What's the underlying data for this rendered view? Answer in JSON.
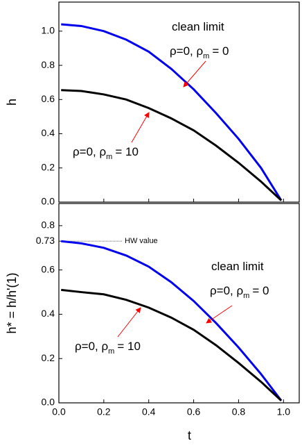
{
  "chart_data": [
    {
      "type": "line",
      "ylabel": "h",
      "x": [
        0.01,
        0.1,
        0.2,
        0.3,
        0.4,
        0.5,
        0.6,
        0.7,
        0.8,
        0.9,
        0.99
      ],
      "series": [
        {
          "color": "#0000ee",
          "values": [
            1.04,
            1.03,
            1.0,
            0.95,
            0.88,
            0.78,
            0.66,
            0.52,
            0.37,
            0.2,
            0.01
          ]
        },
        {
          "color": "#000000",
          "values": [
            0.655,
            0.65,
            0.63,
            0.6,
            0.55,
            0.49,
            0.42,
            0.33,
            0.23,
            0.12,
            0.01
          ]
        }
      ],
      "annotations": [
        {
          "text": "clean limit"
        },
        {
          "text": "ρ=0, ρ",
          "sub": "m",
          "rest": "= 0"
        },
        {
          "text": "ρ=0, ρ",
          "sub": "m",
          "rest": "= 10"
        }
      ],
      "arrow_color": "#ff0000",
      "xlim": [
        0,
        1.07
      ],
      "ylim": [
        0,
        1.17
      ],
      "yticks": [
        {
          "value": 0,
          "label": "0.0"
        },
        {
          "value": 0.2,
          "label": "0.2"
        },
        {
          "value": 0.4,
          "label": "0.4"
        },
        {
          "value": 0.6,
          "label": "0.6"
        },
        {
          "value": 0.8,
          "label": "0.8"
        },
        {
          "value": 1.0,
          "label": "1.0"
        }
      ]
    },
    {
      "type": "line",
      "ylabel": "h* = h/h'(1)",
      "xlabel": "t",
      "x": [
        0.01,
        0.1,
        0.2,
        0.3,
        0.4,
        0.5,
        0.6,
        0.7,
        0.8,
        0.9,
        0.99
      ],
      "series": [
        {
          "color": "#0000ee",
          "values": [
            0.73,
            0.72,
            0.7,
            0.665,
            0.615,
            0.545,
            0.46,
            0.36,
            0.25,
            0.13,
            0.01
          ]
        },
        {
          "color": "#000000",
          "values": [
            0.51,
            0.5,
            0.49,
            0.465,
            0.43,
            0.385,
            0.33,
            0.26,
            0.18,
            0.095,
            0.01
          ]
        }
      ],
      "annotations": [
        {
          "text": "HW value"
        },
        {
          "text": "clean limit"
        },
        {
          "text": "ρ=0, ρ",
          "sub": "m",
          "rest": "= 0"
        },
        {
          "text": "ρ=0, ρ",
          "sub": "m",
          "rest": "= 10"
        }
      ],
      "arrow_color": "#ff0000",
      "xlim": [
        0,
        1.07
      ],
      "ylim": [
        0,
        0.9
      ],
      "xticks": [
        {
          "value": 0,
          "label": "0.0"
        },
        {
          "value": 0.2,
          "label": "0.2"
        },
        {
          "value": 0.4,
          "label": "0.4"
        },
        {
          "value": 0.6,
          "label": "0.6"
        },
        {
          "value": 0.8,
          "label": "0.8"
        },
        {
          "value": 1.0,
          "label": "1.0"
        }
      ],
      "yticks": [
        {
          "value": 0,
          "label": "0.0"
        },
        {
          "value": 0.2,
          "label": "0.2"
        },
        {
          "value": 0.4,
          "label": "0.4"
        },
        {
          "value": 0.6,
          "label": "0.6"
        },
        {
          "value": 0.73,
          "label": "0.73"
        },
        {
          "value": 0.8,
          "label": "0.8"
        }
      ]
    }
  ]
}
